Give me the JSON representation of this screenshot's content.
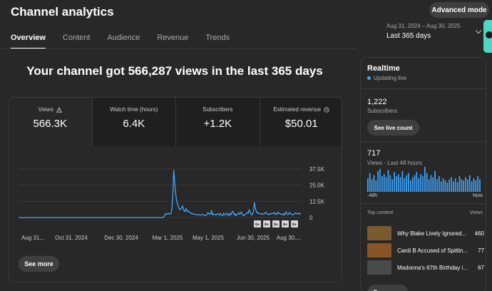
{
  "header": {
    "title": "Channel analytics",
    "advanced_mode": "Advanced mode",
    "date_range_sub": "Aug 31, 2024 – Aug 30, 2025",
    "date_range_main": "Last 365 days"
  },
  "tabs": [
    {
      "label": "Overview"
    },
    {
      "label": "Content"
    },
    {
      "label": "Audience"
    },
    {
      "label": "Revenue"
    },
    {
      "label": "Trends"
    }
  ],
  "headline": "Your channel got 566,287 views in the last 365 days",
  "metrics": [
    {
      "label": "Views",
      "value": "566.3K"
    },
    {
      "label": "Watch time (hours)",
      "value": "6.4K"
    },
    {
      "label": "Subscribers",
      "value": "+1.2K"
    },
    {
      "label": "Estimated revenue",
      "value": "$50.01"
    }
  ],
  "see_more": "See more",
  "chart_data": {
    "type": "line",
    "title": "Views",
    "x_labels": [
      "Aug 31...",
      "Oct 31, 2024",
      "Dec 30, 2024",
      "Mar 1, 2025",
      "May 1, 2025",
      "Jun 30, 2025",
      "Aug 30,..."
    ],
    "y_ticks": [
      "37.5K",
      "25.0K",
      "12.5K",
      "0"
    ],
    "ylim": [
      0,
      37500
    ],
    "values": [
      0,
      0,
      0,
      0,
      0,
      0,
      0,
      0,
      0,
      0,
      0,
      0,
      0,
      0,
      0,
      0,
      0,
      0,
      0,
      0,
      0,
      0,
      0,
      0,
      0,
      0,
      0,
      0,
      0,
      0,
      0,
      0,
      0,
      0,
      0,
      0,
      0,
      0,
      0,
      0,
      0,
      0,
      0,
      0,
      0,
      0,
      0,
      0,
      0,
      0,
      0,
      0,
      0,
      0,
      0,
      0,
      0,
      0,
      0,
      0,
      0,
      0,
      0,
      0,
      0,
      0,
      0,
      0,
      0,
      0,
      0,
      0,
      0,
      0,
      0,
      0,
      0,
      0,
      0,
      0,
      0,
      0,
      0,
      0,
      0,
      0,
      0,
      0,
      0,
      0,
      0,
      0,
      0,
      0,
      0,
      0,
      0,
      0,
      0,
      0,
      0,
      0,
      0,
      0,
      0,
      0,
      0,
      0,
      0,
      0,
      0,
      0,
      0,
      0,
      0,
      0,
      0,
      0,
      0,
      0,
      0,
      0,
      0,
      0,
      0,
      0,
      0,
      0,
      0,
      0,
      0,
      0,
      0,
      0,
      0,
      0,
      0,
      0,
      0,
      0,
      0,
      0,
      0,
      0,
      0,
      0,
      0,
      0,
      0,
      0,
      0,
      0,
      0,
      0,
      0,
      0,
      0,
      0,
      0,
      0,
      0,
      0,
      0,
      0,
      0,
      300,
      900,
      2200,
      3100,
      2500,
      2700,
      3500,
      2800,
      2600,
      3200,
      7500,
      17500,
      36500,
      28000,
      20000,
      14000,
      11000,
      9000,
      7000,
      6000,
      6500,
      7500,
      9000,
      6500,
      5000,
      4500,
      7000,
      6000,
      4500,
      5000,
      4200,
      3500,
      3000,
      3200,
      2600,
      2800,
      2500,
      2400,
      2200,
      2000,
      2400,
      2100,
      1800,
      2000,
      2300,
      2600,
      1900,
      1700,
      1500,
      1800,
      2200,
      4000,
      3000,
      2400,
      3000,
      5500,
      2000,
      2800,
      2300,
      2500,
      1800,
      2500,
      3000,
      2400,
      1900,
      3200,
      2000,
      1800,
      1600,
      3500,
      2300,
      2100,
      2700,
      3500,
      1900,
      1500,
      3400,
      2000,
      3200,
      5000,
      4200,
      2000,
      3000,
      1500,
      2300,
      2700,
      3800,
      2500,
      2800,
      4400,
      2800,
      1700,
      1500,
      2300,
      2800,
      3000,
      4000,
      3500,
      6000,
      4500,
      2700,
      2000,
      3100,
      5000,
      11500,
      7500,
      5000,
      3500,
      4000,
      3000,
      3000,
      2600,
      3200,
      2700,
      2400,
      3000,
      3300,
      4200,
      3000,
      2600,
      2200,
      2900,
      2500,
      3000,
      3300,
      3100,
      3100,
      3900,
      2500,
      2800,
      2500,
      4300,
      3200,
      3000,
      2800,
      2200,
      2600,
      3000,
      1700,
      3100,
      4500,
      2800,
      2200,
      2800,
      4000,
      3200,
      2400,
      2100,
      2400,
      2500,
      3200,
      3700,
      2900,
      3100,
      2700,
      3600,
      2800,
      2400
    ]
  },
  "chart_markers": [
    "9+",
    "9+",
    "9+",
    "9+",
    "9+"
  ],
  "realtime": {
    "title": "Realtime",
    "status": "Updating live",
    "subscribers_value": "1,222",
    "subscribers_label": "Subscribers",
    "live_count_button": "See live count",
    "views_value": "717",
    "views_label": "Views · Last 48 hours",
    "axis_left": "-48h",
    "axis_right": "Now",
    "bars": [
      13,
      18,
      12,
      16,
      11,
      20,
      22,
      15,
      17,
      14,
      21,
      16,
      12,
      19,
      15,
      17,
      14,
      20,
      13,
      16,
      18,
      11,
      14,
      16,
      19,
      13,
      17,
      15,
      24,
      18,
      12,
      16,
      14,
      20,
      12,
      15,
      10,
      13,
      11,
      9,
      12,
      14,
      10,
      13,
      9,
      15,
      12,
      11,
      14,
      12,
      16,
      10,
      13,
      11,
      15,
      12
    ],
    "top_content_label": "Top content",
    "top_content_metric": "Views",
    "top_content": [
      {
        "title": "Why Blake Lively Ignored...",
        "views": "460",
        "thumb_color": "#7a5a2e"
      },
      {
        "title": "Cardi B Accused of Spittin...",
        "views": "77",
        "thumb_color": "#8a5526"
      },
      {
        "title": "Madonna's 67th Birthday i...",
        "views": "67",
        "thumb_color": "#4a4a4a"
      }
    ],
    "see_more": "See more"
  },
  "colors": {
    "accent_line": "#3ea6ff",
    "live_dot": "#3ea6ff",
    "side_tab": "#4fd7c3"
  }
}
